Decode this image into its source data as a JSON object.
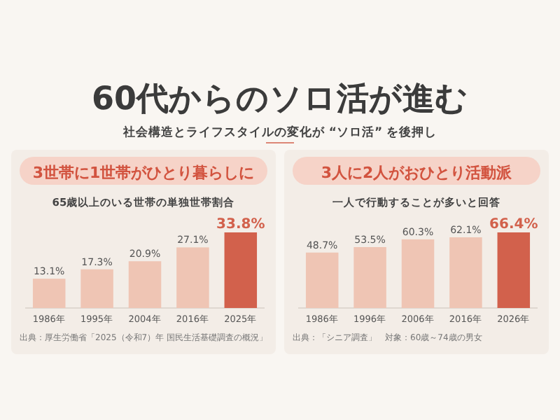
{
  "chart_data": [
    {
      "type": "bar",
      "title": "3世帯に1世帯がひとり暮らしに",
      "subtitle": "65歳以上のいる世帯の単独世帯割合",
      "annotations": [
        "60代からのソロ活が進む",
        "社会構造とライフスタイルの変化が “ソロ活” を後押し",
        "出典：厚生労働省「2025（令和7）年 国民生活基礎調査の概況」"
      ],
      "categories": [
        "1986年",
        "1995年",
        "2004年",
        "2016年",
        "2025年"
      ],
      "values": [
        13.1,
        17.3,
        20.9,
        27.1,
        33.8
      ],
      "value_labels": [
        "13.1%",
        "17.3%",
        "20.9%",
        "27.1%",
        "33.8%"
      ],
      "colors": [
        "#efc5b4",
        "#efc5b4",
        "#efc5b4",
        "#efc5b4",
        "#d2614c"
      ]
    },
    {
      "type": "bar",
      "title": "3人に2人がおひとり活動派",
      "subtitle": "一人で行動することが多いと回答",
      "annotations": [
        "出典：「シニア調査」　対象：60歳～74歳の男女"
      ],
      "categories": [
        "1986年",
        "1996年",
        "2006年",
        "2016年",
        "2026年"
      ],
      "values": [
        48.7,
        53.5,
        60.3,
        62.1,
        66.4
      ],
      "value_labels": [
        "48.7%",
        "53.5%",
        "60.3%",
        "62.1%",
        "66.4%"
      ],
      "colors": [
        "#efc5b4",
        "#efc5b4",
        "#efc5b4",
        "#efc5b4",
        "#d2614c"
      ]
    }
  ]
}
